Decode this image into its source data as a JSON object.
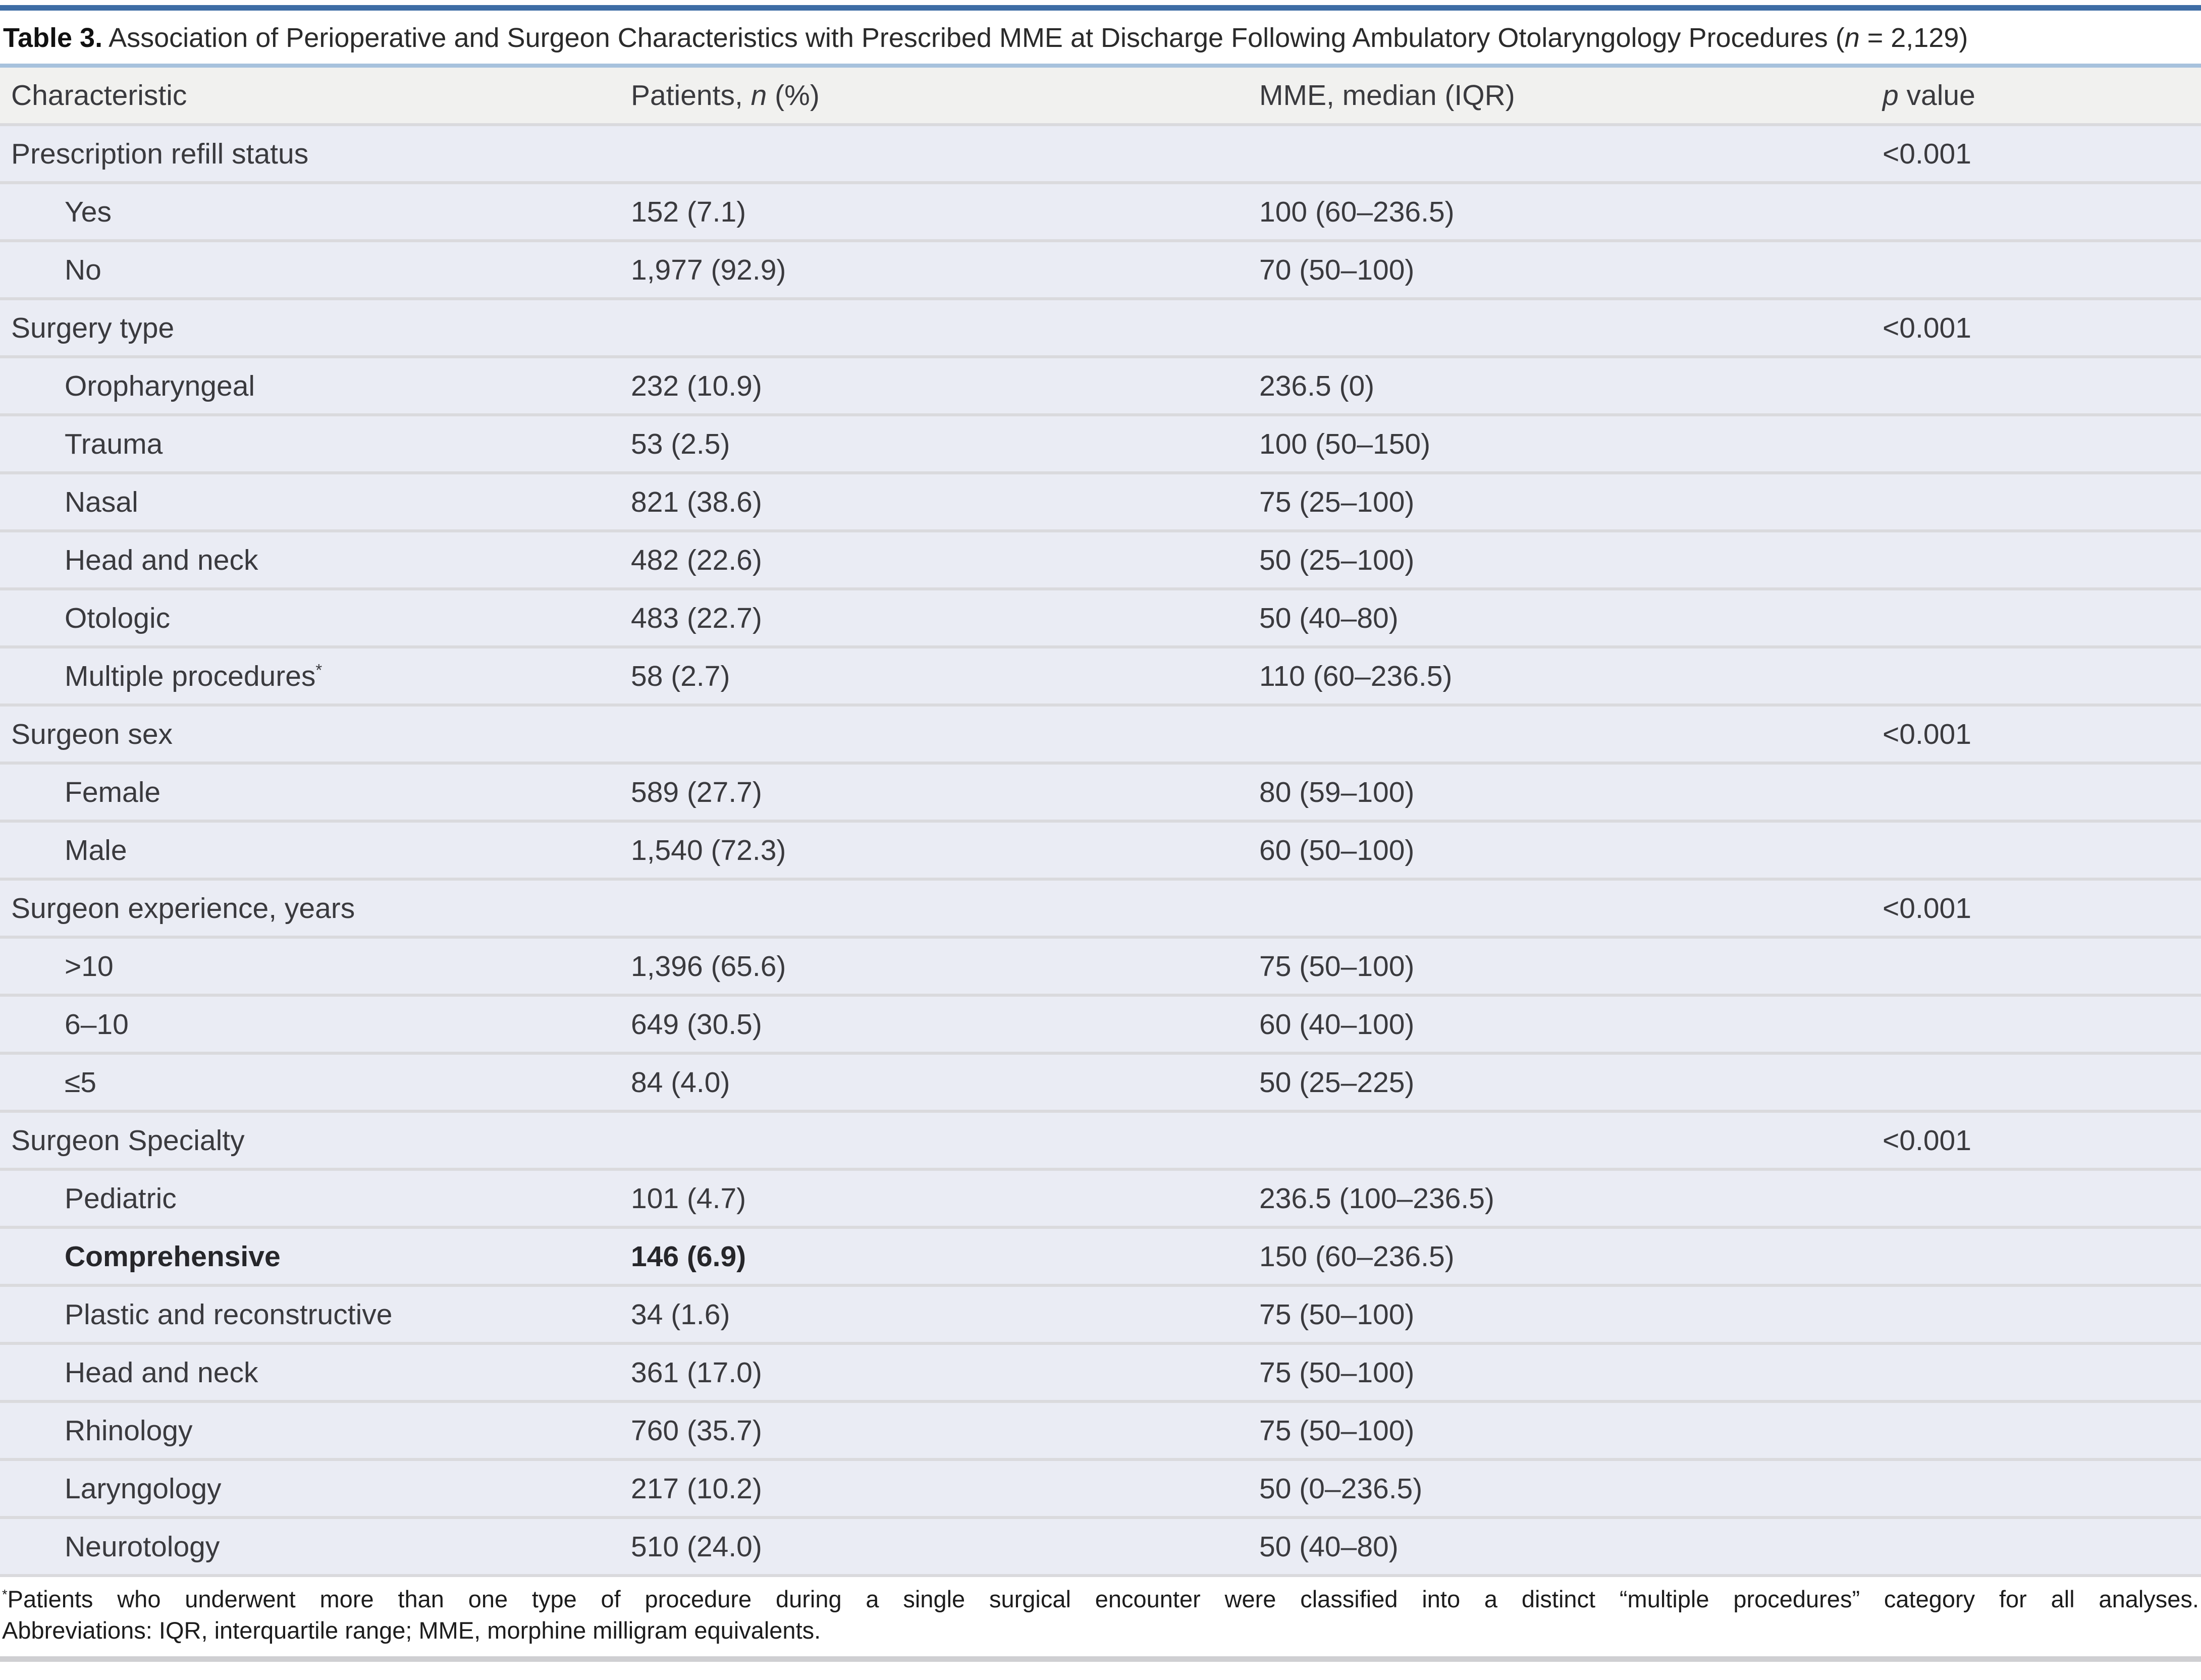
{
  "colors": {
    "top_bar": "#3e6da5",
    "under_title_bar": "#a7c2dd",
    "header_bg": "#f1f1ef",
    "row_bg": "#eaecf4",
    "divider": "#dadadd",
    "footer_bar": "#cfcfd2",
    "text": "#3a3a3e",
    "title_text": "#2a2a2a"
  },
  "title": {
    "bold": "Table 3.",
    "rest_before_n": " Association of Perioperative and Surgeon Characteristics with Prescribed MME at Discharge Following Ambulatory Otolaryngology Procedures (",
    "n": "n",
    "rest_after_n": " = 2,129)"
  },
  "header": {
    "characteristic": "Characteristic",
    "patients_before": "Patients, ",
    "patients_n": "n",
    "patients_after": " (%)",
    "mme": "MME, median (IQR)",
    "p_italic": "p",
    "p_rest": " value"
  },
  "table": {
    "rows": [
      {
        "label": "Prescription refill status",
        "indent": false,
        "bold": false,
        "patients": "",
        "mme": "",
        "p": "<0.001"
      },
      {
        "label": "Yes",
        "indent": true,
        "bold": false,
        "patients": "152 (7.1)",
        "mme": "100 (60–236.5)",
        "p": ""
      },
      {
        "label": "No",
        "indent": true,
        "bold": false,
        "patients": "1,977 (92.9)",
        "mme": "70 (50–100)",
        "p": ""
      },
      {
        "label": "Surgery type",
        "indent": false,
        "bold": false,
        "patients": "",
        "mme": "",
        "p": "<0.001"
      },
      {
        "label": "Oropharyngeal",
        "indent": true,
        "bold": false,
        "patients": "232 (10.9)",
        "mme": "236.5 (0)",
        "p": ""
      },
      {
        "label": "Trauma",
        "indent": true,
        "bold": false,
        "patients": "53 (2.5)",
        "mme": "100 (50–150)",
        "p": ""
      },
      {
        "label": "Nasal",
        "indent": true,
        "bold": false,
        "patients": "821 (38.6)",
        "mme": "75 (25–100)",
        "p": ""
      },
      {
        "label": "Head and neck",
        "indent": true,
        "bold": false,
        "patients": "482 (22.6)",
        "mme": "50 (25–100)",
        "p": ""
      },
      {
        "label": "Otologic",
        "indent": true,
        "bold": false,
        "patients": "483 (22.7)",
        "mme": "50 (40–80)",
        "p": ""
      },
      {
        "label": "Multiple procedures",
        "sup": "*",
        "indent": true,
        "bold": false,
        "patients": "58 (2.7)",
        "mme": "110 (60–236.5)",
        "p": ""
      },
      {
        "label": "Surgeon sex",
        "indent": false,
        "bold": false,
        "patients": "",
        "mme": "",
        "p": "<0.001"
      },
      {
        "label": "Female",
        "indent": true,
        "bold": false,
        "patients": "589 (27.7)",
        "mme": "80 (59–100)",
        "p": ""
      },
      {
        "label": "Male",
        "indent": true,
        "bold": false,
        "patients": "1,540 (72.3)",
        "mme": "60 (50–100)",
        "p": ""
      },
      {
        "label": "Surgeon experience, years",
        "indent": false,
        "bold": false,
        "patients": "",
        "mme": "",
        "p": "<0.001"
      },
      {
        "label": ">10",
        "indent": true,
        "bold": false,
        "patients": "1,396 (65.6)",
        "mme": "75 (50–100)",
        "p": ""
      },
      {
        "label": "6–10",
        "indent": true,
        "bold": false,
        "patients": "649 (30.5)",
        "mme": "60 (40–100)",
        "p": ""
      },
      {
        "label": "≤5",
        "indent": true,
        "bold": false,
        "patients": "84 (4.0)",
        "mme": "50 (25–225)",
        "p": ""
      },
      {
        "label": "Surgeon Specialty",
        "indent": false,
        "bold": false,
        "patients": "",
        "mme": "",
        "p": "<0.001"
      },
      {
        "label": "Pediatric",
        "indent": true,
        "bold": false,
        "patients": "101 (4.7)",
        "mme": "236.5 (100–236.5)",
        "p": ""
      },
      {
        "label": "Comprehensive",
        "indent": true,
        "bold": true,
        "patients": "146 (6.9)",
        "mme": "150 (60–236.5)",
        "p": ""
      },
      {
        "label": "Plastic and reconstructive",
        "indent": true,
        "bold": false,
        "patients": "34 (1.6)",
        "mme": "75 (50–100)",
        "p": ""
      },
      {
        "label": "Head and neck",
        "indent": true,
        "bold": false,
        "patients": "361 (17.0)",
        "mme": "75 (50–100)",
        "p": ""
      },
      {
        "label": "Rhinology",
        "indent": true,
        "bold": false,
        "patients": "760 (35.7)",
        "mme": "75 (50–100)",
        "p": ""
      },
      {
        "label": "Laryngology",
        "indent": true,
        "bold": false,
        "patients": "217 (10.2)",
        "mme": "50 (0–236.5)",
        "p": ""
      },
      {
        "label": "Neurotology",
        "indent": true,
        "bold": false,
        "patients": "510 (24.0)",
        "mme": "50 (40–80)",
        "p": ""
      }
    ]
  },
  "footnote": {
    "line1_sup": "*",
    "line1": "Patients who underwent more than one type of procedure during a single surgical encounter were classified into a distinct “multiple procedures” category for all analyses.",
    "line2": "Abbreviations: IQR, interquartile range; MME, morphine milligram equivalents."
  }
}
